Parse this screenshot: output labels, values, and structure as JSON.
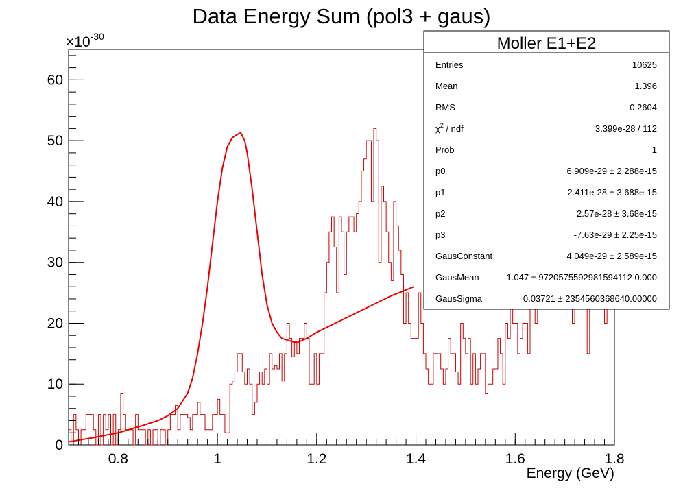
{
  "chart_data": {
    "type": "histogram",
    "title": "Data Energy Sum (pol3 + gaus)",
    "xlabel": "Energy (GeV)",
    "ylabel": "",
    "multiplier_base": "×10",
    "multiplier_exp": "-30",
    "xlim": [
      0.7,
      1.8
    ],
    "ylim": [
      0,
      65
    ],
    "xticks": [
      0.8,
      1,
      1.2,
      1.4,
      1.6,
      1.8
    ],
    "xtick_labels": [
      "0.8",
      "1",
      "1.2",
      "1.4",
      "1.6",
      "1.8"
    ],
    "yticks": [
      0,
      10,
      20,
      30,
      40,
      50,
      60
    ],
    "ytick_labels": [
      "0",
      "10",
      "20",
      "30",
      "40",
      "50",
      "60"
    ],
    "bin_width": 0.005,
    "bin_start": 0.7,
    "histogram_color": "#cc0000",
    "fit_color": "#ee0000",
    "series": [
      {
        "kind": "histogram",
        "values": [
          2.5,
          0,
          5,
          2.5,
          0,
          2.5,
          2.5,
          5,
          5,
          5,
          2.5,
          0,
          5,
          0,
          5,
          2.5,
          5,
          0,
          5,
          0,
          2.5,
          8.5,
          5,
          2.5,
          2.5,
          2.5,
          0,
          5,
          2.5,
          2.5,
          2.5,
          0,
          2.5,
          0,
          2.5,
          2.5,
          0,
          2.5,
          2.5,
          0,
          2.5,
          5,
          5,
          6.5,
          2.5,
          5,
          5,
          5,
          4.5,
          2.5,
          5,
          5,
          7,
          5,
          5,
          2.5,
          2.5,
          2.5,
          5,
          5,
          7.5,
          5,
          5,
          2,
          2,
          10,
          10.5,
          12,
          15,
          15,
          12,
          10,
          12.5,
          10,
          5,
          7,
          10,
          12,
          10,
          12.5,
          10,
          15,
          12.5,
          13,
          12.5,
          15,
          10.5,
          15,
          20,
          17.5,
          14.5,
          17,
          15,
          17.5,
          17.5,
          20,
          17.5,
          10,
          10,
          15,
          10,
          15,
          15,
          25,
          30,
          35,
          37.5,
          32.5,
          25,
          37.5,
          35,
          28,
          35,
          37.5,
          37.5,
          35,
          38,
          40,
          45,
          47,
          50,
          50,
          40,
          52,
          50,
          30,
          42.5,
          40,
          35,
          30,
          27,
          40,
          36,
          32,
          28,
          20,
          25,
          20,
          17.5,
          17.5,
          17.5,
          25,
          20,
          15,
          12.5,
          10,
          10,
          15,
          15,
          15,
          12.5,
          10,
          12.5,
          17.5,
          15,
          15,
          12,
          10,
          20,
          17.5,
          15,
          17.5,
          10,
          15,
          10,
          12.5,
          15,
          15,
          8.5,
          10,
          10,
          12.5,
          12.5,
          17.5,
          15,
          10,
          20,
          17.5,
          25,
          20,
          20,
          15,
          17.5,
          20,
          20,
          15,
          27.5,
          25,
          20,
          25,
          25,
          25,
          25,
          27.5,
          25,
          30,
          25,
          27.5,
          27.5,
          30,
          30,
          25,
          25,
          20,
          30,
          27.5,
          30,
          30,
          27.5,
          15,
          37.5,
          35,
          32.5,
          30,
          35,
          25,
          20,
          30,
          30,
          37.5,
          37.5,
          30,
          35,
          32.5,
          35,
          35,
          42.5,
          35,
          37.5,
          40,
          35,
          32.5,
          35,
          30,
          40,
          37.5,
          45,
          40,
          40,
          40,
          42.5,
          42.5,
          35,
          40,
          37.5,
          35,
          40,
          40,
          35,
          45,
          45,
          42.5,
          42.5,
          40,
          40,
          42.5,
          40,
          40,
          40,
          40,
          50,
          50,
          47.5,
          45,
          40,
          45,
          47.5,
          42.5,
          40,
          42.5,
          45,
          40,
          37.5,
          42.5,
          42.5,
          40,
          47.5,
          47.5,
          40,
          50,
          50,
          40,
          52.5,
          42.5,
          40,
          42.5,
          37.5,
          40,
          42.5,
          45,
          40,
          40,
          37.5,
          42.5,
          40,
          40,
          42.5,
          40,
          50,
          50,
          50,
          45,
          45,
          42.5,
          40,
          47.5,
          47.5,
          45,
          45,
          42.5,
          40,
          40,
          42.5,
          47.5,
          47.5,
          37.5,
          35,
          30,
          35,
          30,
          40,
          35,
          30,
          32.5,
          35,
          30,
          40,
          40,
          40,
          40,
          42.5,
          40,
          37.5,
          40,
          42.5,
          40,
          45,
          42.5,
          40,
          40,
          35,
          45,
          42.5,
          47.5,
          42.5,
          40,
          35,
          40,
          42.5,
          40,
          50,
          50,
          55,
          50,
          45,
          42.5,
          40,
          42.5,
          45,
          42.5,
          40,
          45,
          42.5,
          40,
          42.5,
          45,
          40,
          50,
          55,
          52.5,
          55,
          62,
          50,
          50,
          45,
          45,
          50,
          50,
          40,
          37.5,
          40
        ]
      },
      {
        "kind": "fit",
        "name": "pol3 + gaus",
        "x": [
          0.7,
          0.75,
          0.8,
          0.85,
          0.88,
          0.9,
          0.92,
          0.94,
          0.95,
          0.96,
          0.97,
          0.98,
          0.99,
          1.0,
          1.01,
          1.02,
          1.03,
          1.04,
          1.047,
          1.055,
          1.06,
          1.07,
          1.08,
          1.09,
          1.1,
          1.11,
          1.12,
          1.13,
          1.15,
          1.16,
          1.18,
          1.2,
          1.25,
          1.3,
          1.35,
          1.396
        ],
        "y": [
          0.5,
          1.2,
          2.0,
          3.2,
          4.0,
          4.8,
          6.0,
          8.5,
          11.0,
          15.0,
          20.0,
          26.0,
          33.0,
          40.0,
          45.5,
          49.0,
          50.5,
          51.0,
          51.3,
          50.0,
          48.0,
          42.0,
          35.0,
          28.0,
          23.0,
          20.0,
          18.5,
          17.5,
          17.0,
          16.8,
          17.5,
          18.5,
          20.5,
          22.5,
          24.5,
          26.0
        ]
      }
    ]
  },
  "stats": {
    "title": "Moller E1+E2",
    "rows": [
      {
        "label": "Entries",
        "value": "10625"
      },
      {
        "label": "Mean",
        "value": "1.396"
      },
      {
        "label": "RMS",
        "value": "0.2604"
      },
      {
        "label": "χ",
        "label_sup": "2",
        "label_rest": " / ndf",
        "value": "3.399e-28 / 112"
      },
      {
        "label": "Prob",
        "value": "1"
      },
      {
        "label": "p0",
        "value": "6.909e-29 ± 2.288e-15"
      },
      {
        "label": "p1",
        "value": "-2.411e-28 ± 3.688e-15"
      },
      {
        "label": "p2",
        "value": "2.57e-28 ± 3.68e-15"
      },
      {
        "label": "p3",
        "value": "-7.63e-29 ± 2.25e-15"
      },
      {
        "label": "GausConstant",
        "value": "4.049e-29 ± 2.589e-15"
      },
      {
        "label": "GausMean",
        "value": "1.047 ± 9720575592981594112 0.000"
      },
      {
        "label": "GausSigma",
        "value": "0.03721 ± 2354560368640.00000"
      }
    ]
  }
}
